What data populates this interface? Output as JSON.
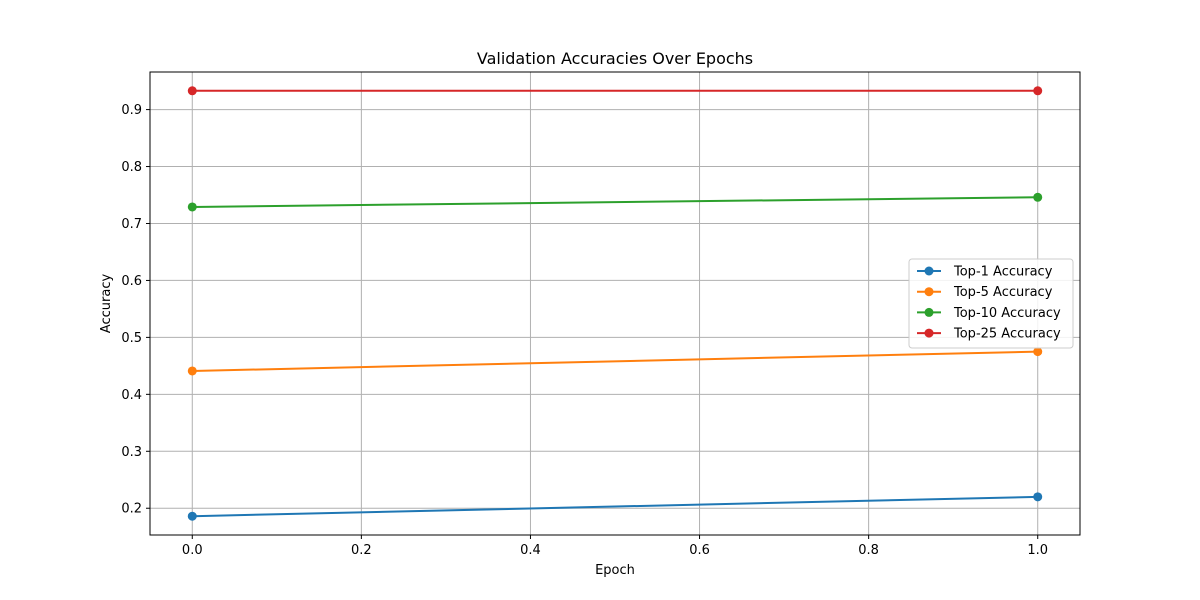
{
  "chart_data": {
    "type": "line",
    "title": "Validation Accuracies Over Epochs",
    "xlabel": "Epoch",
    "ylabel": "Accuracy",
    "x": [
      0,
      1
    ],
    "xlim": [
      -0.05,
      1.05
    ],
    "ylim": [
      0.153,
      0.966
    ],
    "xticks": [
      "0.0",
      "0.2",
      "0.4",
      "0.6",
      "0.8",
      "1.0"
    ],
    "yticks": [
      "0.2",
      "0.3",
      "0.4",
      "0.5",
      "0.6",
      "0.7",
      "0.8",
      "0.9"
    ],
    "grid": true,
    "legend_position": "center-right",
    "series": [
      {
        "name": "Top-1 Accuracy",
        "color": "#1f77b4",
        "values": [
          0.186,
          0.22
        ]
      },
      {
        "name": "Top-5 Accuracy",
        "color": "#ff7f0e",
        "values": [
          0.441,
          0.475
        ]
      },
      {
        "name": "Top-10 Accuracy",
        "color": "#2ca02c",
        "values": [
          0.729,
          0.746
        ]
      },
      {
        "name": "Top-25 Accuracy",
        "color": "#d62728",
        "values": [
          0.933,
          0.933
        ]
      }
    ]
  }
}
